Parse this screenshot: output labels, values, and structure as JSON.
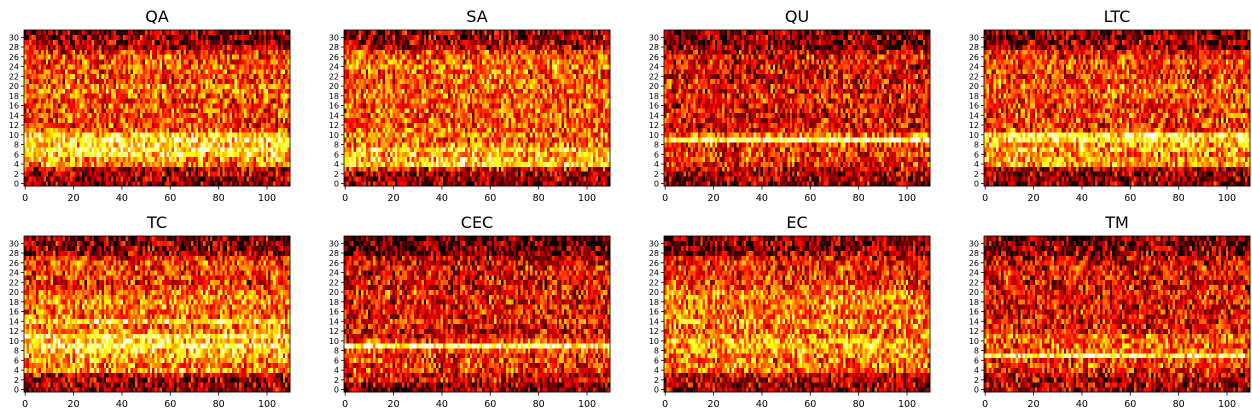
{
  "chart_data": [
    {
      "type": "heatmap",
      "title": "QA",
      "colormap": "hot",
      "xlim": [
        0,
        110
      ],
      "ylim": [
        0,
        31
      ],
      "xticks": [
        0,
        20,
        40,
        60,
        80,
        100
      ],
      "yticks": [
        0,
        2,
        4,
        6,
        8,
        10,
        12,
        14,
        16,
        18,
        20,
        22,
        24,
        26,
        28,
        30
      ],
      "row_mean_intensity": [
        0.2,
        0.22,
        0.25,
        0.3,
        0.55,
        0.62,
        0.72,
        0.78,
        0.72,
        0.78,
        0.7,
        0.45,
        0.42,
        0.45,
        0.48,
        0.45,
        0.47,
        0.45,
        0.5,
        0.55,
        0.55,
        0.45,
        0.45,
        0.47,
        0.5,
        0.48,
        0.45,
        0.4,
        0.28,
        0.25,
        0.22,
        0.2
      ]
    },
    {
      "type": "heatmap",
      "title": "SA",
      "colormap": "hot",
      "xlim": [
        0,
        110
      ],
      "ylim": [
        0,
        31
      ],
      "xticks": [
        0,
        20,
        40,
        60,
        80,
        100
      ],
      "yticks": [
        0,
        2,
        4,
        6,
        8,
        10,
        12,
        14,
        16,
        18,
        20,
        22,
        24,
        26,
        28,
        30
      ],
      "row_mean_intensity": [
        0.2,
        0.2,
        0.22,
        0.35,
        0.72,
        0.68,
        0.65,
        0.7,
        0.55,
        0.5,
        0.55,
        0.5,
        0.48,
        0.5,
        0.5,
        0.48,
        0.5,
        0.5,
        0.5,
        0.52,
        0.5,
        0.5,
        0.48,
        0.5,
        0.55,
        0.5,
        0.48,
        0.42,
        0.3,
        0.25,
        0.22,
        0.22
      ]
    },
    {
      "type": "heatmap",
      "title": "QU",
      "colormap": "hot",
      "xlim": [
        0,
        110
      ],
      "ylim": [
        0,
        31
      ],
      "xticks": [
        0,
        20,
        40,
        60,
        80,
        100
      ],
      "yticks": [
        0,
        2,
        4,
        6,
        8,
        10,
        12,
        14,
        16,
        18,
        20,
        22,
        24,
        26,
        28,
        30
      ],
      "row_mean_intensity": [
        0.22,
        0.25,
        0.25,
        0.3,
        0.38,
        0.42,
        0.4,
        0.42,
        0.45,
        0.9,
        0.55,
        0.35,
        0.35,
        0.38,
        0.35,
        0.35,
        0.35,
        0.35,
        0.38,
        0.35,
        0.38,
        0.35,
        0.33,
        0.35,
        0.35,
        0.35,
        0.35,
        0.3,
        0.22,
        0.2,
        0.2,
        0.18
      ]
    },
    {
      "type": "heatmap",
      "title": "LTC",
      "colormap": "hot",
      "xlim": [
        0,
        110
      ],
      "ylim": [
        0,
        31
      ],
      "xticks": [
        0,
        20,
        40,
        60,
        80,
        100
      ],
      "yticks": [
        0,
        2,
        4,
        6,
        8,
        10,
        12,
        14,
        16,
        18,
        20,
        22,
        24,
        26,
        28,
        30
      ],
      "row_mean_intensity": [
        0.2,
        0.2,
        0.22,
        0.28,
        0.6,
        0.62,
        0.55,
        0.65,
        0.6,
        0.75,
        0.78,
        0.45,
        0.42,
        0.45,
        0.45,
        0.42,
        0.45,
        0.45,
        0.48,
        0.5,
        0.5,
        0.45,
        0.42,
        0.45,
        0.45,
        0.48,
        0.42,
        0.38,
        0.25,
        0.22,
        0.22,
        0.2
      ]
    },
    {
      "type": "heatmap",
      "title": "TC",
      "colormap": "hot",
      "xlim": [
        0,
        110
      ],
      "ylim": [
        0,
        31
      ],
      "xticks": [
        0,
        20,
        40,
        60,
        80,
        100
      ],
      "yticks": [
        0,
        2,
        4,
        6,
        8,
        10,
        12,
        14,
        16,
        18,
        20,
        22,
        24,
        26,
        28,
        30
      ],
      "row_mean_intensity": [
        0.2,
        0.22,
        0.22,
        0.3,
        0.6,
        0.55,
        0.6,
        0.65,
        0.72,
        0.8,
        0.7,
        0.78,
        0.6,
        0.55,
        0.72,
        0.55,
        0.5,
        0.55,
        0.6,
        0.55,
        0.5,
        0.42,
        0.4,
        0.45,
        0.42,
        0.45,
        0.45,
        0.38,
        0.25,
        0.22,
        0.2,
        0.2
      ]
    },
    {
      "type": "heatmap",
      "title": "CEC",
      "colormap": "hot",
      "xlim": [
        0,
        110
      ],
      "ylim": [
        0,
        31
      ],
      "xticks": [
        0,
        20,
        40,
        60,
        80,
        100
      ],
      "yticks": [
        0,
        2,
        4,
        6,
        8,
        10,
        12,
        14,
        16,
        18,
        20,
        22,
        24,
        26,
        28,
        30
      ],
      "row_mean_intensity": [
        0.2,
        0.22,
        0.35,
        0.3,
        0.42,
        0.4,
        0.45,
        0.4,
        0.5,
        0.88,
        0.45,
        0.35,
        0.35,
        0.35,
        0.4,
        0.35,
        0.35,
        0.35,
        0.35,
        0.38,
        0.38,
        0.35,
        0.35,
        0.33,
        0.35,
        0.35,
        0.32,
        0.28,
        0.18,
        0.15,
        0.15,
        0.12
      ]
    },
    {
      "type": "heatmap",
      "title": "EC",
      "colormap": "hot",
      "xlim": [
        0,
        110
      ],
      "ylim": [
        0,
        31
      ],
      "xticks": [
        0,
        20,
        40,
        60,
        80,
        100
      ],
      "yticks": [
        0,
        2,
        4,
        6,
        8,
        10,
        12,
        14,
        16,
        18,
        20,
        22,
        24,
        26,
        28,
        30
      ],
      "row_mean_intensity": [
        0.22,
        0.25,
        0.28,
        0.3,
        0.5,
        0.55,
        0.52,
        0.55,
        0.6,
        0.62,
        0.65,
        0.55,
        0.5,
        0.55,
        0.6,
        0.55,
        0.52,
        0.55,
        0.55,
        0.58,
        0.55,
        0.45,
        0.42,
        0.42,
        0.4,
        0.42,
        0.4,
        0.35,
        0.25,
        0.22,
        0.2,
        0.2
      ]
    },
    {
      "type": "heatmap",
      "title": "TM",
      "colormap": "hot",
      "xlim": [
        0,
        110
      ],
      "ylim": [
        0,
        31
      ],
      "xticks": [
        0,
        20,
        40,
        60,
        80,
        100
      ],
      "yticks": [
        0,
        2,
        4,
        6,
        8,
        10,
        12,
        14,
        16,
        18,
        20,
        22,
        24,
        26,
        28,
        30
      ],
      "row_mean_intensity": [
        0.22,
        0.25,
        0.25,
        0.3,
        0.4,
        0.45,
        0.42,
        0.85,
        0.5,
        0.48,
        0.5,
        0.55,
        0.38,
        0.35,
        0.38,
        0.35,
        0.35,
        0.35,
        0.38,
        0.35,
        0.38,
        0.35,
        0.33,
        0.35,
        0.35,
        0.35,
        0.33,
        0.3,
        0.22,
        0.2,
        0.18,
        0.18
      ]
    }
  ]
}
